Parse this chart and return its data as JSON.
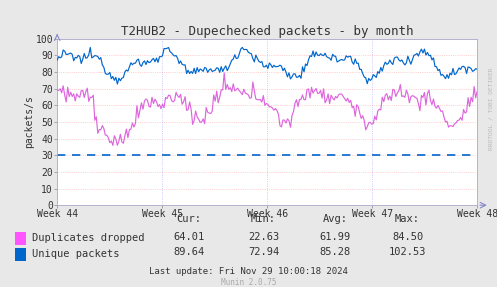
{
  "title": "T2HUB2 - Dupechecked packets - by month",
  "ylabel": "packets/s",
  "background_color": "#e8e8e8",
  "plot_bg_color": "#ffffff",
  "grid_h_color": "#ffaaaa",
  "grid_v_color": "#aaaaff",
  "ylim": [
    0,
    100
  ],
  "yticks": [
    0,
    10,
    20,
    30,
    40,
    50,
    60,
    70,
    80,
    90,
    100
  ],
  "xtick_labels": [
    "Week 44",
    "Week 45",
    "Week 46",
    "Week 47",
    "Week 48"
  ],
  "dashed_line_y": 30,
  "dashed_line_color": "#0066cc",
  "legend_entries": [
    "Duplicates dropped",
    "Unique packets"
  ],
  "legend_colors": [
    "#ff55ff",
    "#0066cc"
  ],
  "stats_headers": [
    "Cur:",
    "Min:",
    "Avg:",
    "Max:"
  ],
  "stats": {
    "cur": [
      "64.01",
      "89.64"
    ],
    "min": [
      "22.63",
      "72.94"
    ],
    "avg": [
      "61.99",
      "85.28"
    ],
    "max": [
      "84.50",
      "102.53"
    ]
  },
  "last_update": "Last update: Fri Nov 29 10:00:18 2024",
  "munin_version": "Munin 2.0.75",
  "watermark": "RRDTOOL / TOBI OETIKER",
  "pink_line_color": "#dd66dd",
  "blue_line_color": "#0066cc",
  "title_fontsize": 9,
  "axis_fontsize": 7,
  "legend_fontsize": 7.5,
  "stats_fontsize": 7.5
}
